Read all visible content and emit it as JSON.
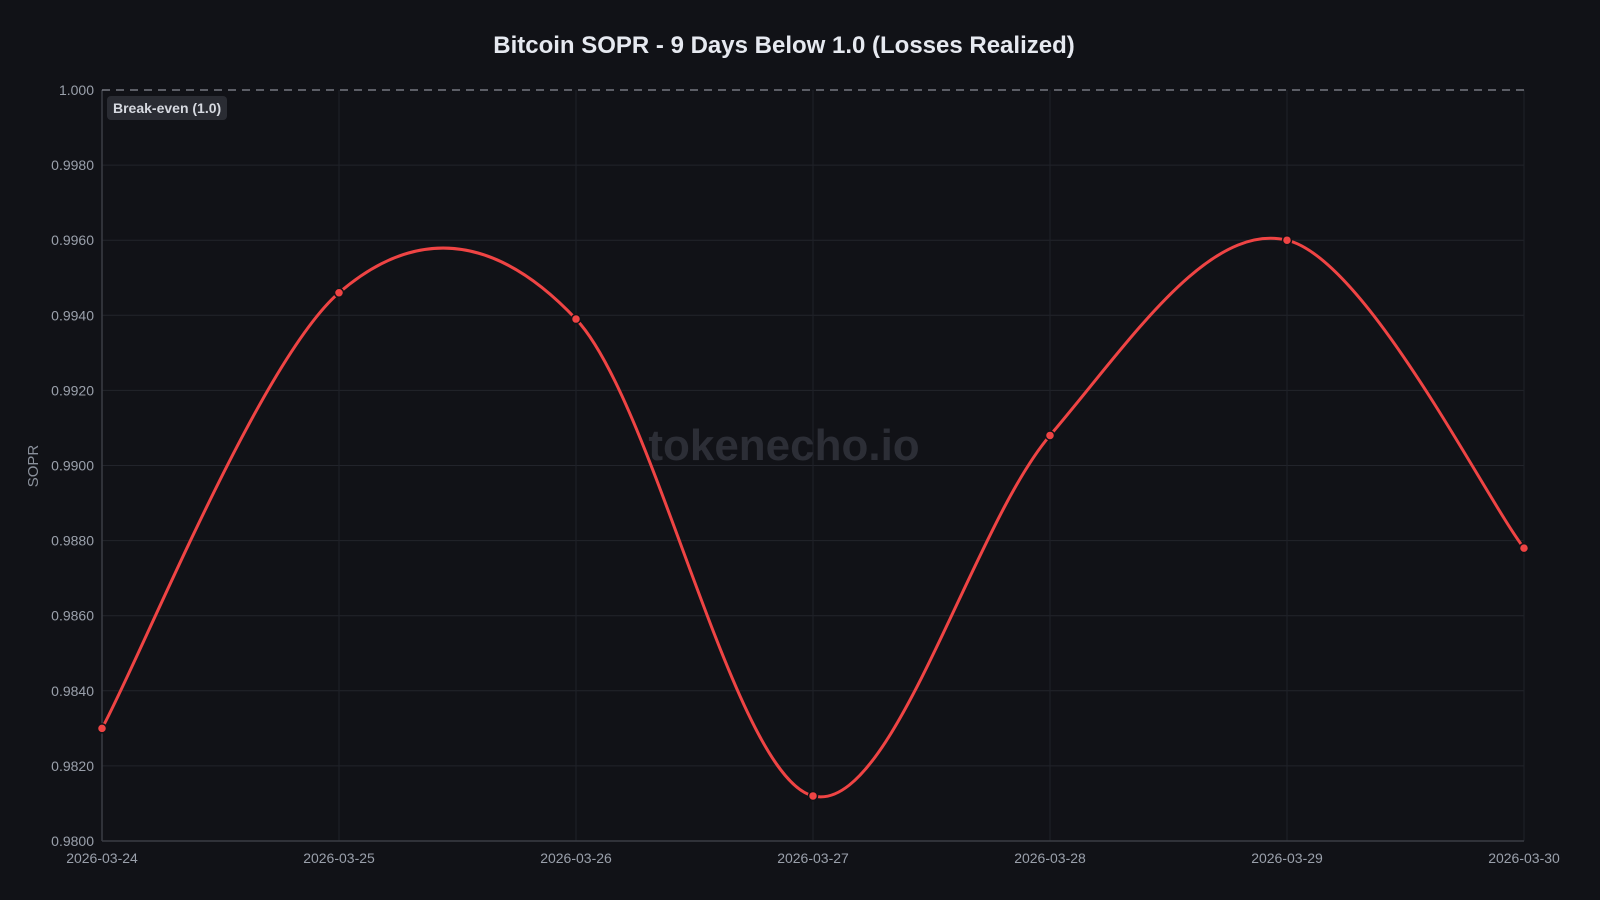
{
  "chart_data": {
    "type": "line",
    "title": "Bitcoin SOPR - 9 Days Below 1.0 (Losses Realized)",
    "xlabel": "",
    "ylabel": "SOPR",
    "x": [
      "2026-03-24",
      "2026-03-25",
      "2026-03-26",
      "2026-03-27",
      "2026-03-28",
      "2026-03-29",
      "2026-03-30"
    ],
    "series": [
      {
        "name": "SOPR",
        "color": "#ef4444",
        "values": [
          0.983,
          0.9946,
          0.9939,
          0.9812,
          0.9908,
          0.996,
          0.9878
        ]
      }
    ],
    "ylim": [
      0.98,
      1.0
    ],
    "yticks": [
      "0.9800",
      "0.9820",
      "0.9840",
      "0.9860",
      "0.9880",
      "0.9900",
      "0.9920",
      "0.9940",
      "0.9960",
      "0.9980",
      "1.000"
    ],
    "grid": true,
    "reference_line": {
      "value": 1.0,
      "label": "Break-even (1.0)",
      "style": "dashed"
    },
    "watermark": "tokenecho.io"
  }
}
